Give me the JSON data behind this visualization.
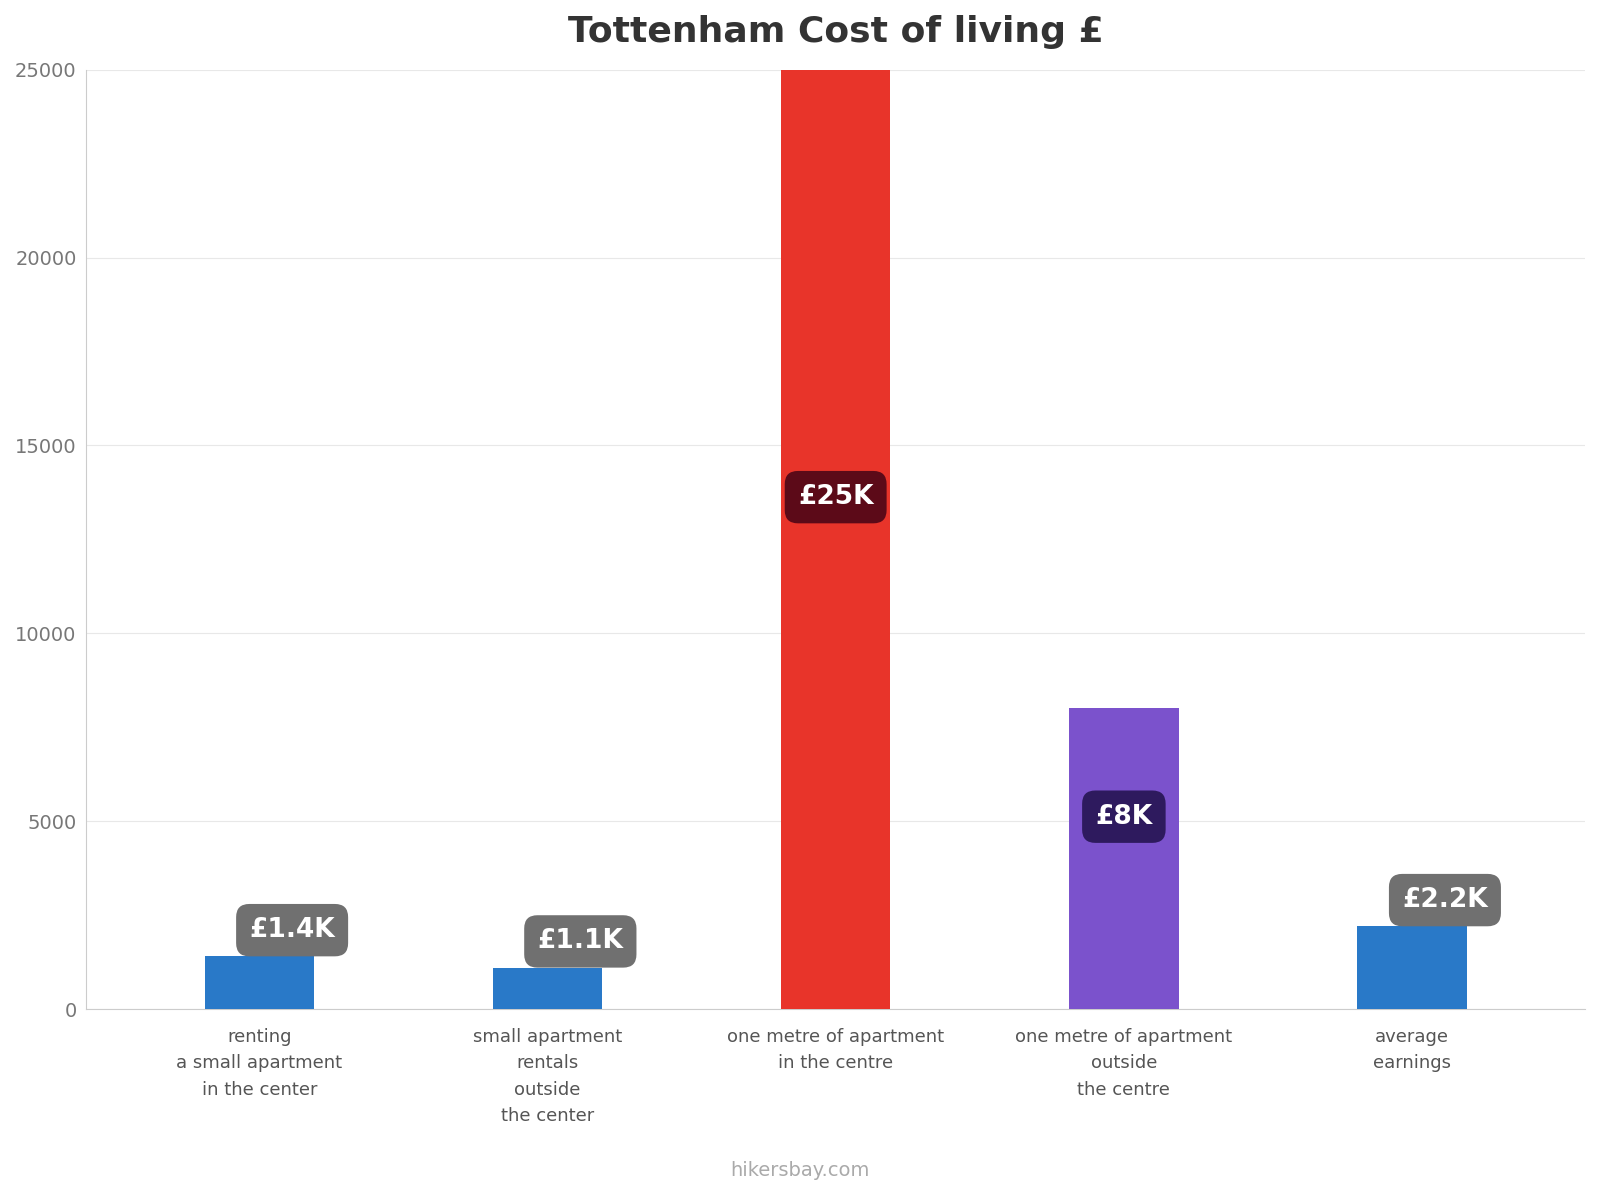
{
  "title": "Tottenham Cost of living £",
  "categories": [
    "renting\na small apartment\nin the center",
    "small apartment\nrentals\noutside\nthe center",
    "one metre of apartment\nin the centre",
    "one metre of apartment\noutside\nthe centre",
    "average\nearnings"
  ],
  "values": [
    1400,
    1100,
    25000,
    8000,
    2200
  ],
  "bar_colors": [
    "#2979C8",
    "#2979C8",
    "#E8342A",
    "#7B52CC",
    "#2979C8"
  ],
  "label_texts": [
    "£1.4K",
    "£1.1K",
    "£25K",
    "£8K",
    "£2.2K"
  ],
  "label_bg_colors": [
    "#707070",
    "#707070",
    "#5C0A18",
    "#2E1A5E",
    "#707070"
  ],
  "ylim": [
    0,
    25000
  ],
  "yticks": [
    0,
    5000,
    10000,
    15000,
    20000,
    25000
  ],
  "background_color": "#ffffff",
  "footer_text": "hikersbay.com",
  "title_fontsize": 26,
  "tick_fontsize": 14,
  "label_fontsize": 19,
  "category_fontsize": 13,
  "bar_width": 0.38
}
